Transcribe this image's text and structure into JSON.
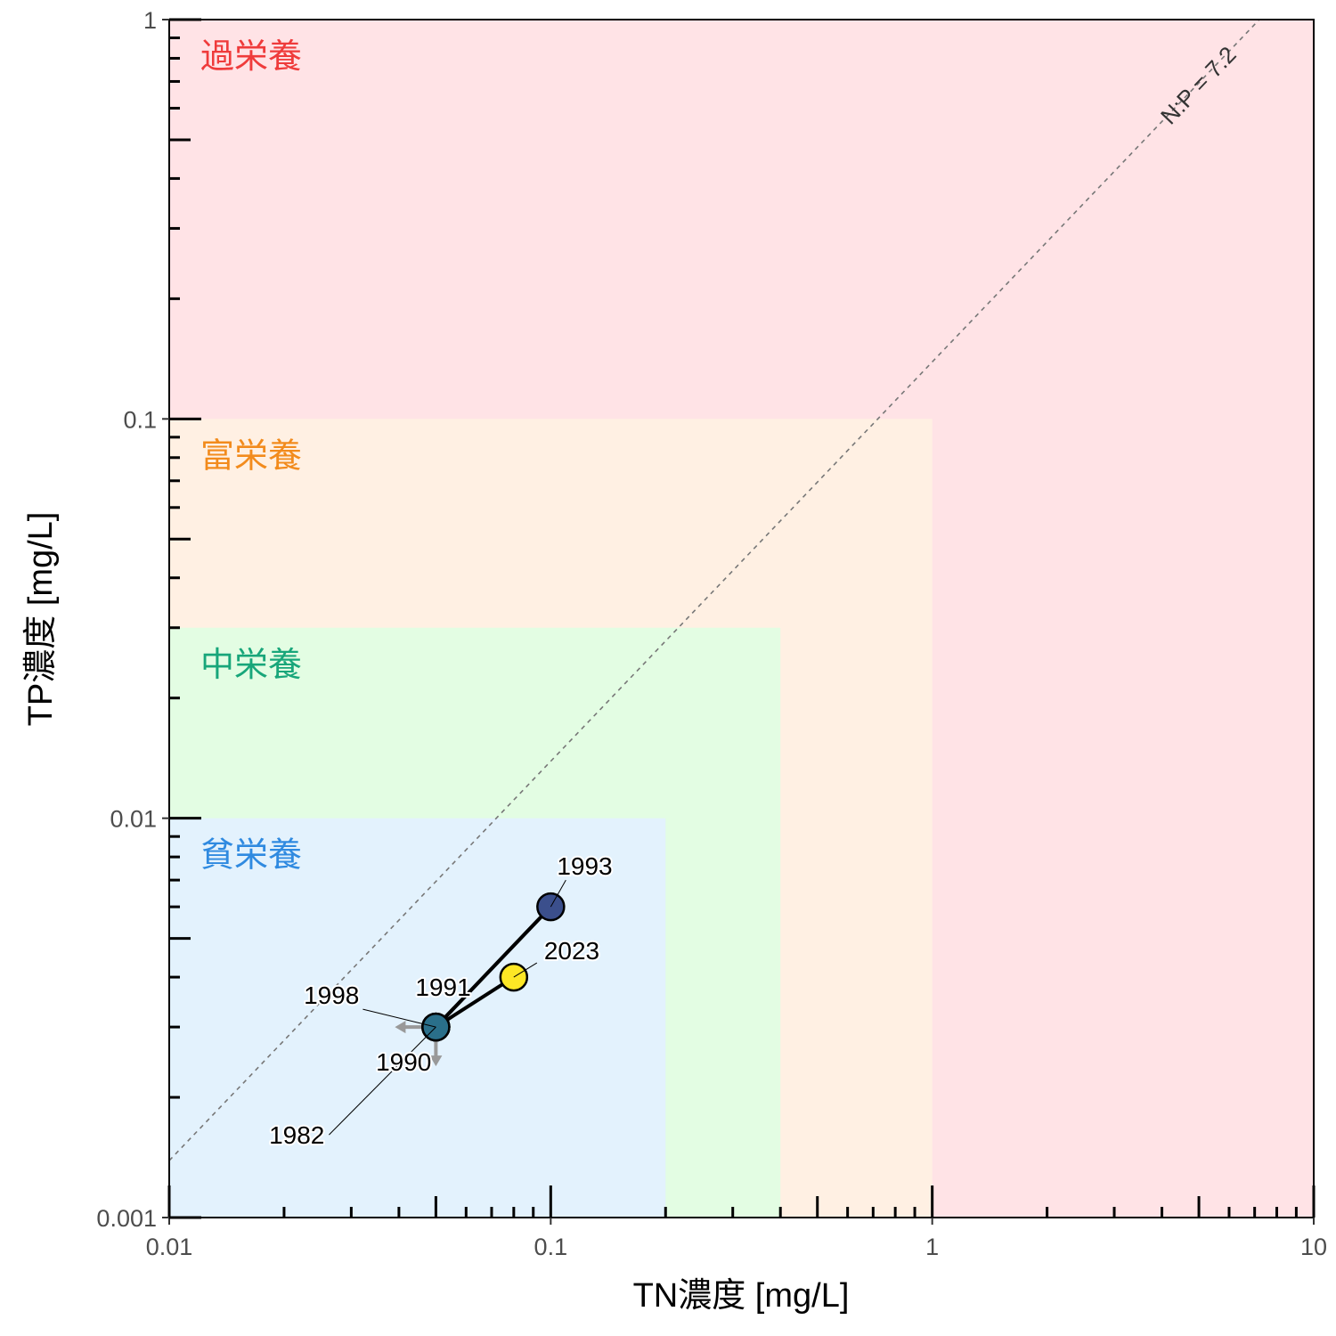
{
  "chart_data": {
    "type": "scatter",
    "x_scale": "log",
    "y_scale": "log",
    "xlabel": "TN濃度 [mg/L]",
    "ylabel": "TP濃度 [mg/L]",
    "xlim": [
      0.01,
      10
    ],
    "ylim": [
      0.001,
      1
    ],
    "x_ticks": [
      {
        "value": 0.01,
        "label": "0.01"
      },
      {
        "value": 0.1,
        "label": "0.1"
      },
      {
        "value": 1,
        "label": "1"
      },
      {
        "value": 10,
        "label": "10"
      }
    ],
    "y_ticks": [
      {
        "value": 0.001,
        "label": "0.001"
      },
      {
        "value": 0.01,
        "label": "0.01"
      },
      {
        "value": 0.1,
        "label": "0.1"
      },
      {
        "value": 1,
        "label": "1"
      }
    ],
    "grid": false,
    "zones": [
      {
        "label": "過栄養",
        "tn_max": 10,
        "tp_max": 1,
        "fill": "#ffe3e6",
        "text_color": "#ef3b3b"
      },
      {
        "label": "富栄養",
        "tn_max": 1,
        "tp_max": 0.1,
        "fill": "#fff0e3",
        "text_color": "#f28b1d"
      },
      {
        "label": "中栄養",
        "tn_max": 0.4,
        "tp_max": 0.03,
        "fill": "#e3fde3",
        "text_color": "#18a67a"
      },
      {
        "label": "貧栄養",
        "tn_max": 0.2,
        "tp_max": 0.01,
        "fill": "#e3f2fd",
        "text_color": "#2f8ae0"
      }
    ],
    "ratio_line": {
      "label": "N:P = 7.2",
      "ratio": 7.2
    },
    "path_order": [
      "1982",
      "1990",
      "1991",
      "1993",
      "1998",
      "2023"
    ],
    "points": [
      {
        "year": "1982",
        "tn": 0.05,
        "tp": 0.003,
        "color": "#2a6f8a"
      },
      {
        "year": "1990",
        "tn": 0.05,
        "tp": 0.003,
        "color": "#2a6f8a"
      },
      {
        "year": "1991",
        "tn": 0.05,
        "tp": 0.003,
        "color": "#2a6f8a"
      },
      {
        "year": "1993",
        "tn": 0.1,
        "tp": 0.006,
        "color": "#3b4f8c"
      },
      {
        "year": "1998",
        "tn": 0.05,
        "tp": 0.003,
        "color": "#2a6f8a"
      },
      {
        "year": "2023",
        "tn": 0.08,
        "tp": 0.004,
        "color": "#fde725"
      }
    ],
    "detection_limit_arrows": {
      "tn": 0.05,
      "tp": 0.003,
      "directions": [
        "left",
        "down"
      ],
      "color": "#999999"
    }
  }
}
